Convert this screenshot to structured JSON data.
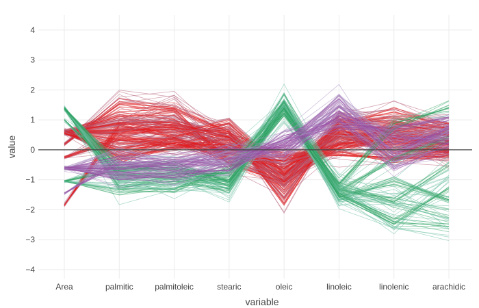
{
  "chart_data": {
    "type": "line",
    "xlabel": "variable",
    "ylabel": "value",
    "categories": [
      "Area",
      "palmitic",
      "palmitoleic",
      "stearic",
      "oleic",
      "linoleic",
      "linolenic",
      "arachidic"
    ],
    "ylim": [
      -4.3,
      4.5
    ],
    "yticks": [
      -4,
      -3,
      -2,
      -1,
      0,
      1,
      2,
      3,
      4
    ],
    "grid": true,
    "zero_line": true,
    "legend": "none",
    "groups": [
      {
        "color": "#e41a1c",
        "muted_color": "#b55d76",
        "profiles": [
          [
            0.6,
            0.55,
            0.7,
            0.1,
            -0.9,
            0.45,
            0.3,
            0.2
          ],
          [
            0.55,
            0.9,
            0.95,
            0.3,
            -1.3,
            0.8,
            0.6,
            0.45
          ],
          [
            0.62,
            0.2,
            0.4,
            -0.1,
            -0.5,
            0.3,
            0.1,
            -0.1
          ],
          [
            0.2,
            1.5,
            1.4,
            0.6,
            -1.7,
            1.0,
            0.9,
            0.7
          ],
          [
            0.65,
            -0.3,
            0.1,
            0.4,
            -0.2,
            -0.1,
            -0.3,
            -0.2
          ],
          [
            -1.85,
            0.8,
            0.5,
            0.9,
            -0.8,
            0.6,
            0.5,
            0.3
          ],
          [
            0.6,
            1.1,
            1.2,
            -0.4,
            -1.1,
            0.2,
            0.8,
            0.6
          ],
          [
            -0.25,
            0.4,
            0.2,
            0.1,
            -0.6,
            0.7,
            -0.1,
            0.1
          ],
          [
            0.6,
            0.7,
            0.8,
            0.5,
            -1.0,
            0.9,
            1.2,
            0.8
          ],
          [
            0.55,
            -0.1,
            0.3,
            -0.3,
            -0.3,
            0.1,
            0.4,
            0.0
          ]
        ]
      },
      {
        "color": "#984ea3",
        "muted_color": "#a88bc0",
        "profiles": [
          [
            -0.6,
            -0.55,
            -0.6,
            -0.3,
            0.1,
            1.5,
            0.2,
            0.5
          ],
          [
            -0.65,
            -0.7,
            -0.8,
            -0.5,
            0.3,
            1.6,
            -0.2,
            0.8
          ],
          [
            -1.45,
            -0.4,
            -0.5,
            -0.1,
            0.0,
            1.2,
            0.5,
            0.3
          ],
          [
            -0.6,
            -0.9,
            -0.9,
            -0.6,
            0.4,
            1.0,
            -0.5,
            0.1
          ],
          [
            -0.62,
            -0.2,
            -0.3,
            0.0,
            -0.2,
            1.3,
            0.0,
            0.6
          ],
          [
            -0.6,
            -0.6,
            -0.4,
            -0.4,
            0.2,
            0.8,
            0.7,
            1.0
          ]
        ]
      },
      {
        "color": "#2ca25f",
        "muted_color": "#6cc0a0",
        "profiles": [
          [
            1.4,
            -0.9,
            -0.8,
            -1.2,
            1.6,
            -1.5,
            -2.4,
            -2.6
          ],
          [
            1.35,
            -1.0,
            -1.1,
            -0.9,
            1.5,
            -1.4,
            -1.7,
            -2.2
          ],
          [
            -1.05,
            -0.7,
            -0.6,
            -1.0,
            1.4,
            -1.6,
            -1.0,
            -1.7
          ],
          [
            1.4,
            -1.2,
            -1.0,
            -1.3,
            1.7,
            -1.2,
            -1.7,
            -0.5
          ],
          [
            1.0,
            -0.8,
            -0.9,
            -0.8,
            1.3,
            -1.4,
            -0.3,
            0.4
          ],
          [
            -1.05,
            -1.4,
            -1.3,
            -0.6,
            1.5,
            -1.5,
            -2.45,
            -1.3
          ],
          [
            1.4,
            -0.6,
            -0.5,
            -1.1,
            1.2,
            -1.1,
            0.8,
            1.4
          ]
        ]
      }
    ]
  }
}
